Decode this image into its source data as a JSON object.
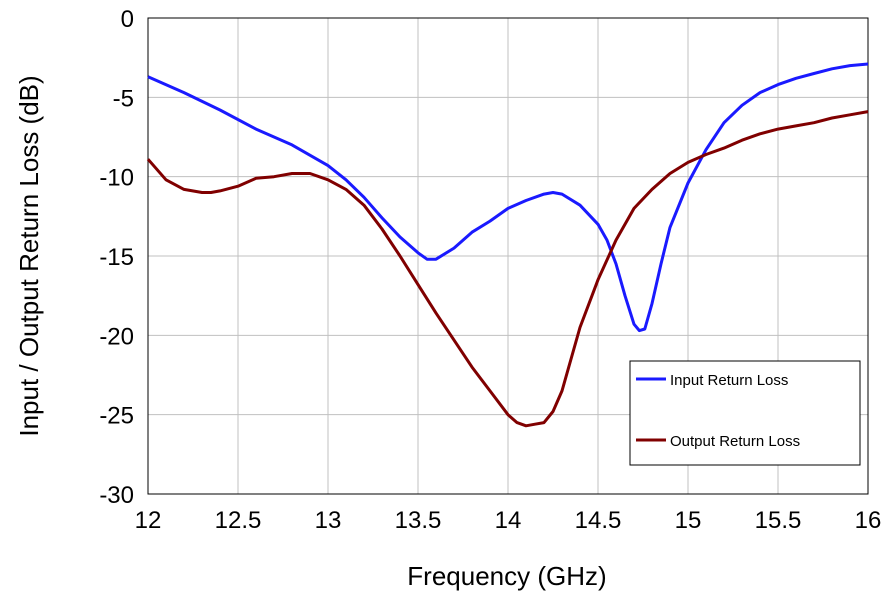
{
  "chart_data": {
    "type": "line",
    "title": "",
    "xlabel": "Frequency (GHz)",
    "ylabel": "Input / Output Return Loss (dB)",
    "xlim": [
      12,
      16
    ],
    "ylim": [
      -30,
      0
    ],
    "xticks": [
      "12",
      "12.5",
      "13",
      "13.5",
      "14",
      "14.5",
      "15",
      "15.5",
      "16"
    ],
    "yticks": [
      "0",
      "-5",
      "-10",
      "-15",
      "-20",
      "-25",
      "-30"
    ],
    "grid": true,
    "legend_position": "bottom-right",
    "series": [
      {
        "name": "Input Return Loss",
        "color": "#1a1aff",
        "x": [
          12.0,
          12.2,
          12.4,
          12.6,
          12.8,
          13.0,
          13.1,
          13.2,
          13.3,
          13.4,
          13.5,
          13.55,
          13.6,
          13.7,
          13.8,
          13.9,
          14.0,
          14.1,
          14.2,
          14.25,
          14.3,
          14.4,
          14.5,
          14.55,
          14.6,
          14.65,
          14.7,
          14.73,
          14.76,
          14.8,
          14.85,
          14.9,
          15.0,
          15.1,
          15.2,
          15.3,
          15.4,
          15.5,
          15.6,
          15.7,
          15.8,
          15.9,
          16.0
        ],
        "values": [
          -3.7,
          -4.7,
          -5.8,
          -7.0,
          -8.0,
          -9.3,
          -10.2,
          -11.3,
          -12.6,
          -13.8,
          -14.8,
          -15.2,
          -15.2,
          -14.5,
          -13.5,
          -12.8,
          -12.0,
          -11.5,
          -11.1,
          -11.0,
          -11.1,
          -11.8,
          -13.0,
          -14.0,
          -15.5,
          -17.5,
          -19.3,
          -19.7,
          -19.6,
          -18.0,
          -15.5,
          -13.2,
          -10.4,
          -8.3,
          -6.6,
          -5.5,
          -4.7,
          -4.2,
          -3.8,
          -3.5,
          -3.2,
          -3.0,
          -2.9
        ]
      },
      {
        "name": "Output Return Loss",
        "color": "#800000",
        "x": [
          12.0,
          12.1,
          12.2,
          12.3,
          12.35,
          12.4,
          12.5,
          12.6,
          12.7,
          12.8,
          12.9,
          13.0,
          13.1,
          13.2,
          13.3,
          13.4,
          13.5,
          13.6,
          13.7,
          13.8,
          13.9,
          14.0,
          14.05,
          14.1,
          14.15,
          14.2,
          14.25,
          14.3,
          14.35,
          14.4,
          14.5,
          14.6,
          14.7,
          14.8,
          14.9,
          15.0,
          15.1,
          15.2,
          15.3,
          15.4,
          15.5,
          15.6,
          15.7,
          15.8,
          15.9,
          16.0
        ],
        "values": [
          -8.9,
          -10.2,
          -10.8,
          -11.0,
          -11.0,
          -10.9,
          -10.6,
          -10.1,
          -10.0,
          -9.8,
          -9.8,
          -10.2,
          -10.8,
          -11.8,
          -13.3,
          -15.0,
          -16.8,
          -18.6,
          -20.3,
          -22.0,
          -23.5,
          -25.0,
          -25.5,
          -25.7,
          -25.6,
          -25.5,
          -24.8,
          -23.5,
          -21.5,
          -19.5,
          -16.5,
          -14.0,
          -12.0,
          -10.8,
          -9.8,
          -9.1,
          -8.6,
          -8.2,
          -7.7,
          -7.3,
          -7.0,
          -6.8,
          -6.6,
          -6.3,
          -6.1,
          -5.9
        ]
      }
    ]
  }
}
